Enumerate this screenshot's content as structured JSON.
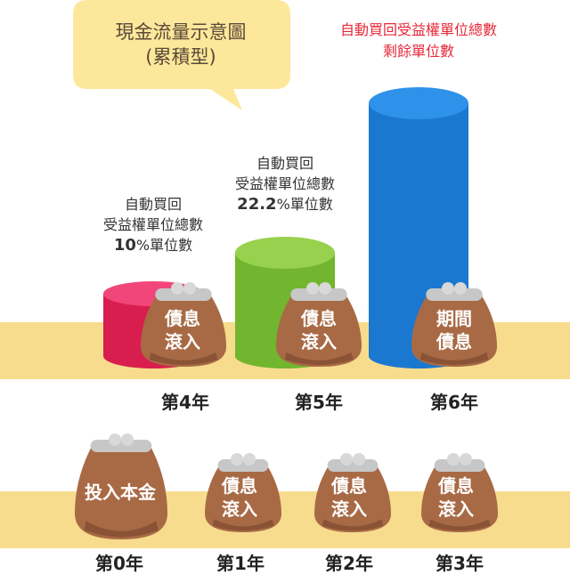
{
  "bubble": {
    "line1": "現金流量示意圖",
    "line2": "(累積型)"
  },
  "red_note": {
    "line1": "自動買回受益權單位總數",
    "line2": "剩餘單位數"
  },
  "notes": {
    "year4": {
      "line1": "自動買回",
      "line2": "受益權單位總數",
      "value": "10",
      "unit": "%單位數"
    },
    "year5": {
      "line1": "自動買回",
      "line2": "受益權單位總數",
      "value": "22.2",
      "unit": "%單位數"
    }
  },
  "purses": {
    "year0": {
      "label": "投入本金"
    },
    "year1": {
      "line1": "債息",
      "line2": "滾入"
    },
    "year2": {
      "line1": "債息",
      "line2": "滾入"
    },
    "year3": {
      "line1": "債息",
      "line2": "滾入"
    },
    "year4": {
      "line1": "債息",
      "line2": "滾入"
    },
    "year5": {
      "line1": "債息",
      "line2": "滾入"
    },
    "year6": {
      "line1": "期間",
      "line2": "債息"
    }
  },
  "years": {
    "y0": "第0年",
    "y1": "第1年",
    "y2": "第2年",
    "y3": "第3年",
    "y4": "第4年",
    "y5": "第5年",
    "y6": "第6年"
  },
  "colors": {
    "band": "#f7dc8e",
    "bubble": "#fde79a",
    "cyl_pink": "#e8285a",
    "cyl_green": "#7fbf3a",
    "cyl_blue": "#1c7fd8",
    "purse": "#a86a45",
    "red_text": "#e8283a"
  }
}
